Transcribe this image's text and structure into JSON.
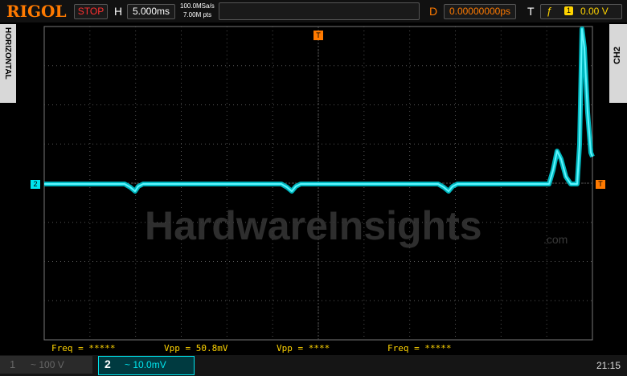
{
  "header": {
    "brand": "RIGOL",
    "run_state": "STOP",
    "timebase_label": "H",
    "timebase": "5.000ms",
    "sample_rate": "100.0MSa/s",
    "memory_depth": "7.00M pts",
    "delay_label": "D",
    "delay": "0.00000000ps",
    "trigger_label": "T",
    "trigger_source": "1",
    "trigger_level": "0.00 V"
  },
  "side_tabs": {
    "left": "HORIZONTAL",
    "right": "CH2"
  },
  "markers": {
    "channel": "2",
    "trigger_position": "T",
    "trigger_level": "T"
  },
  "watermark": {
    "name": "HardwareInsights",
    "suffix": ".com"
  },
  "measurements": [
    "Freq = *****",
    "Vpp = 50.8mV",
    "Vpp = ****",
    "Freq = *****"
  ],
  "footer": {
    "channels": [
      {
        "number": "1",
        "setting": "~ 100 V"
      },
      {
        "number": "2",
        "setting": "~ 10.0mV"
      }
    ],
    "time": "21:15"
  }
}
